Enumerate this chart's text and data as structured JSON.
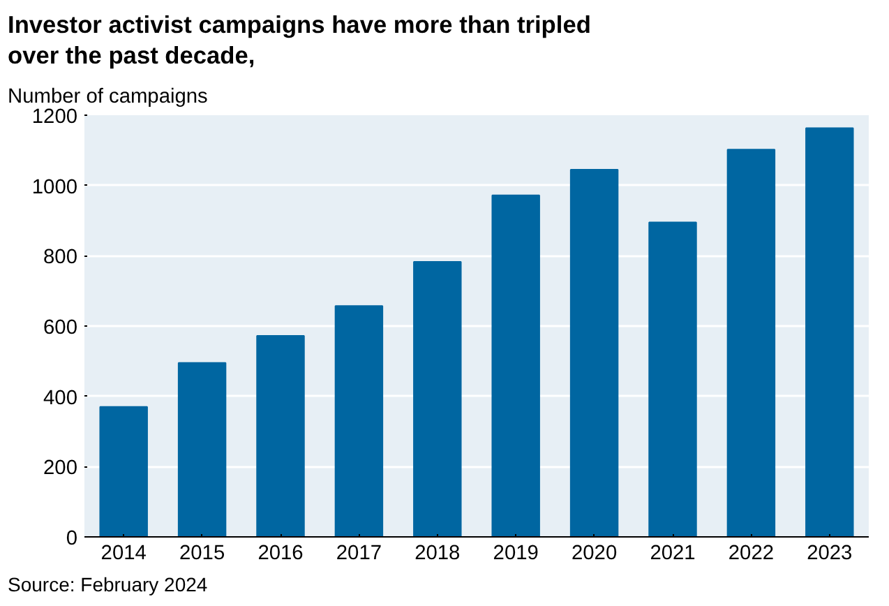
{
  "chart_data": {
    "type": "bar",
    "title": "Investor activist campaigns have more than tripled over the past decade,",
    "subtitle": "Number of campaigns",
    "categories": [
      "2014",
      "2015",
      "2016",
      "2017",
      "2018",
      "2019",
      "2020",
      "2021",
      "2022",
      "2023"
    ],
    "values": [
      370,
      495,
      572,
      657,
      783,
      972,
      1045,
      895,
      1102,
      1163
    ],
    "color": "#0066a1",
    "ylim": [
      0,
      1200
    ],
    "yticks": [
      0,
      200,
      400,
      600,
      800,
      1000,
      1200
    ],
    "grid": "y",
    "annotations": [
      "Source: February 2024"
    ]
  }
}
